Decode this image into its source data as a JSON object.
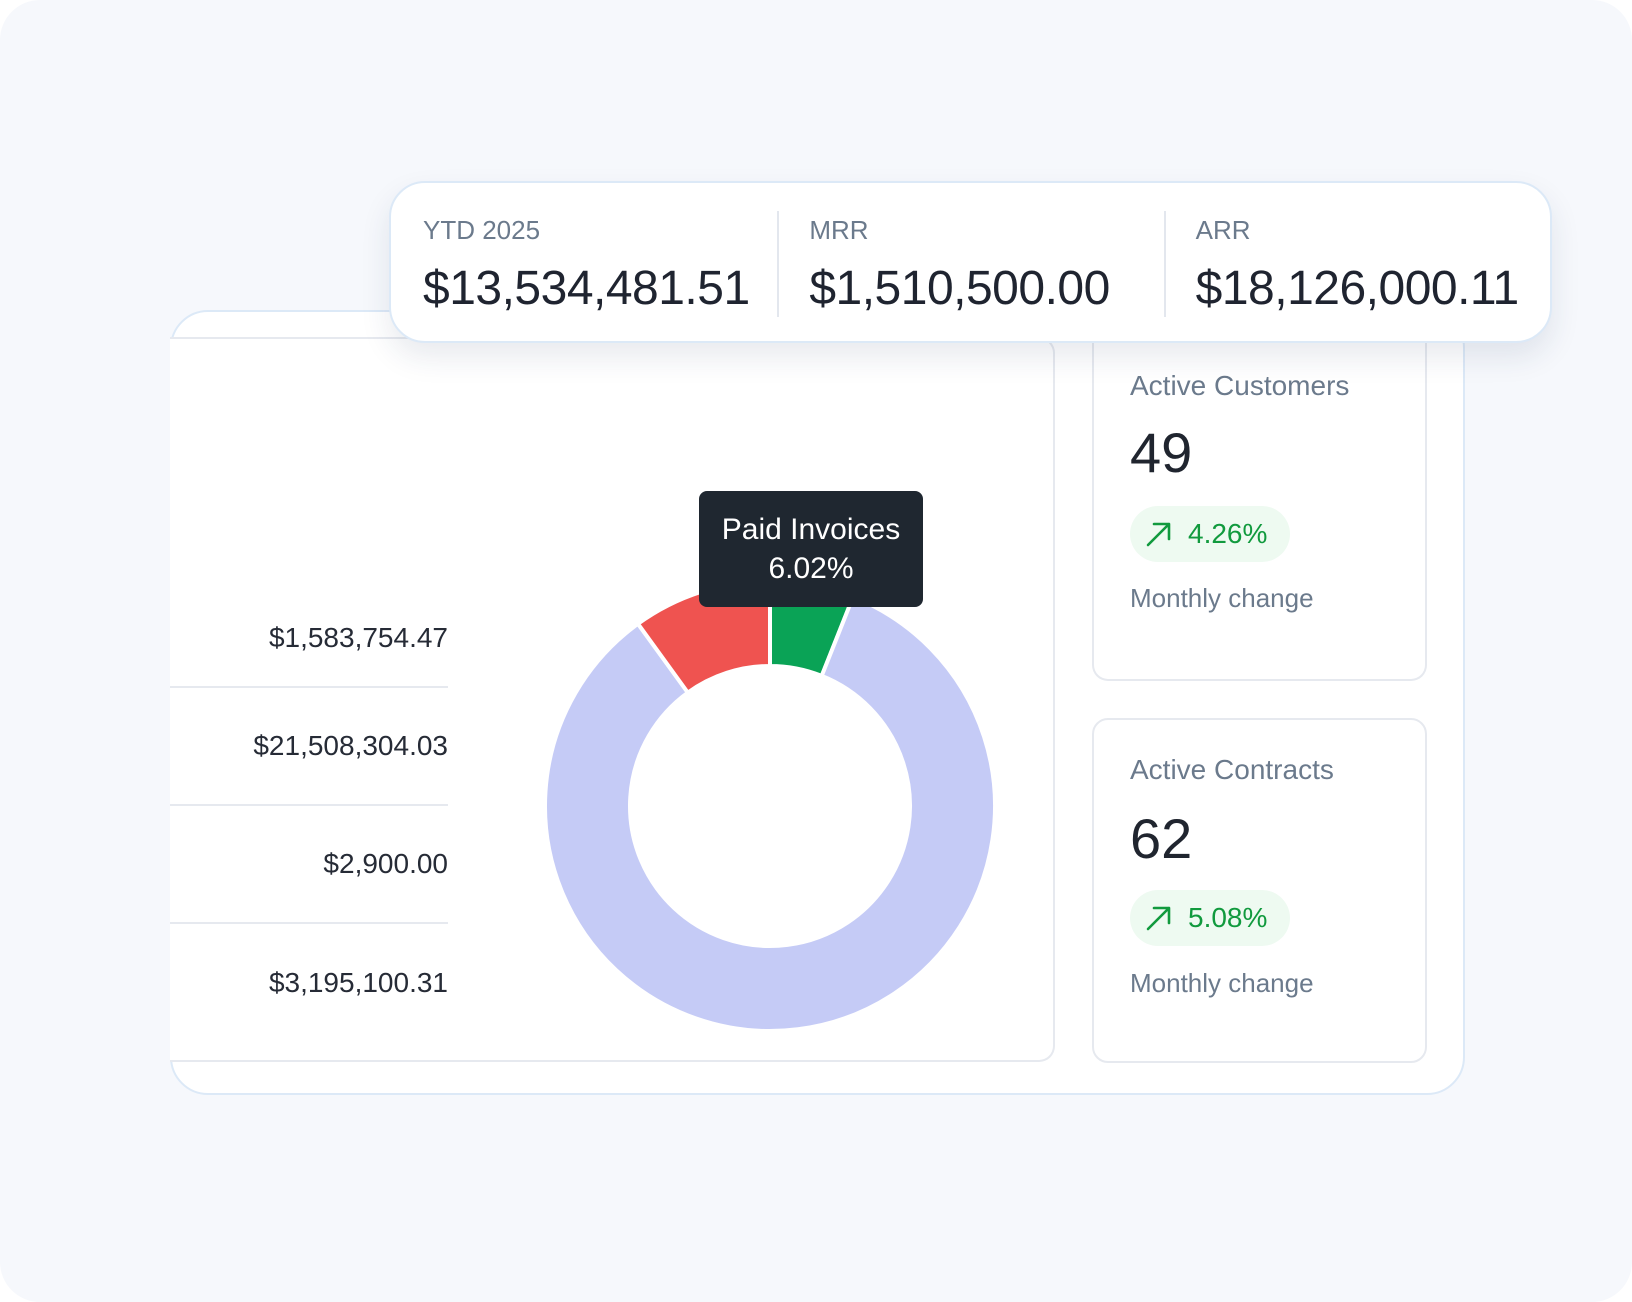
{
  "kpis": [
    {
      "label": "YTD 2025",
      "value": "$13,534,481.51"
    },
    {
      "label": "MRR",
      "value": "$1,510,500.00"
    },
    {
      "label": "ARR",
      "value": "$18,126,000.11"
    }
  ],
  "value_list": [
    "$1,583,754.47",
    "$21,508,304.03",
    "$2,900.00",
    "$3,195,100.31"
  ],
  "tooltip": {
    "label": "Paid Invoices",
    "value": "6.02%"
  },
  "chart_data": {
    "type": "pie",
    "donut": true,
    "slices": [
      {
        "name": "Paid Invoices",
        "percent": 6.02,
        "color": "#0aa356"
      },
      {
        "percent": 84.0,
        "color": "#c5cbf6"
      },
      {
        "percent": 9.98,
        "color": "#ef5350"
      }
    ]
  },
  "stats": [
    {
      "title": "Active Customers",
      "value": "49",
      "change": "4.26%",
      "sub": "Monthly change"
    },
    {
      "title": "Active Contracts",
      "value": "62",
      "change": "5.08%",
      "sub": "Monthly change"
    }
  ],
  "colors": {
    "positive": "#119a3e",
    "positive_bg": "#eefaf1"
  }
}
